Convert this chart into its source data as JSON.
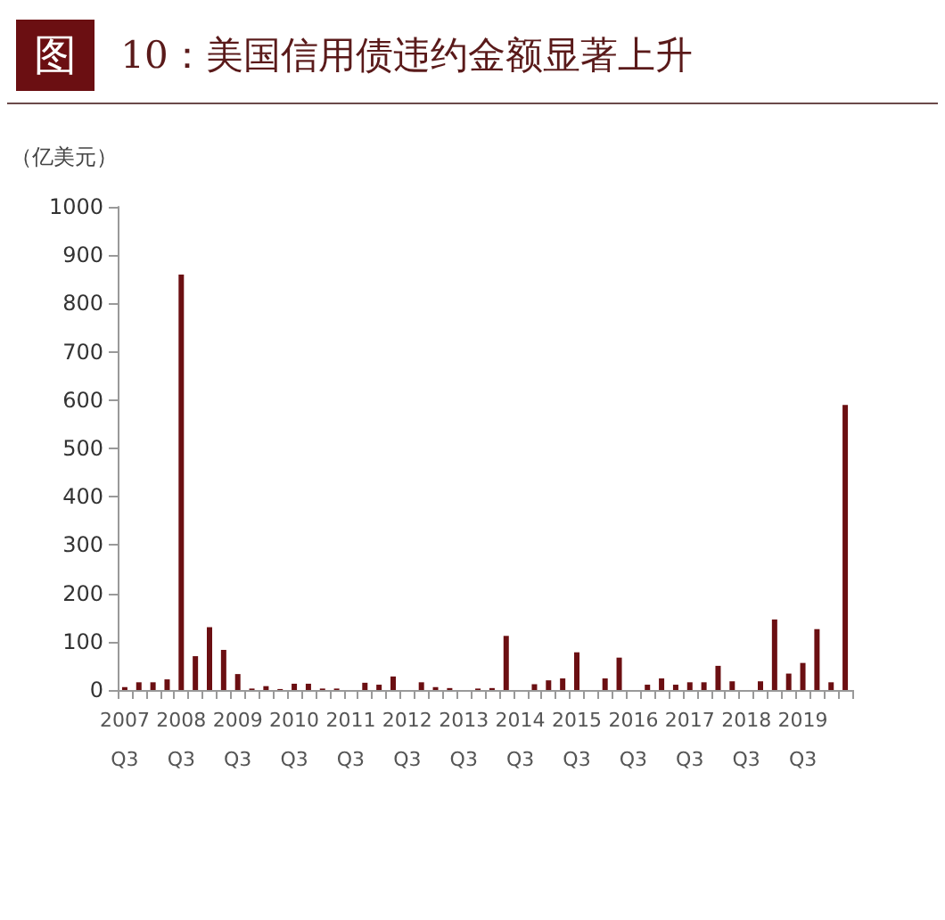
{
  "chart_data": {
    "type": "bar",
    "title": "图 10：美国信用债违约金额显著上升",
    "ylabel": "（亿美元）",
    "categories": [
      "2007\nQ3",
      null,
      null,
      null,
      "2008\nQ3",
      null,
      null,
      null,
      "2009\nQ3",
      null,
      null,
      null,
      "2010\nQ3",
      null,
      null,
      null,
      "2011\nQ3",
      null,
      null,
      null,
      "2012\nQ3",
      null,
      null,
      null,
      "2013\nQ3",
      null,
      null,
      null,
      "2014\nQ3",
      null,
      null,
      null,
      "2015\nQ3",
      null,
      null,
      null,
      "2016\nQ3",
      null,
      null,
      null,
      "2017\nQ3",
      null,
      null,
      null,
      "2018\nQ3",
      null,
      null,
      null,
      "2019\nQ3",
      null,
      null,
      null
    ],
    "values": [
      6,
      16,
      16,
      22,
      860,
      70,
      130,
      83,
      33,
      3,
      8,
      2,
      13,
      13,
      3,
      3,
      null,
      15,
      11,
      28,
      null,
      16,
      6,
      4,
      null,
      3,
      4,
      112,
      null,
      12,
      20,
      24,
      78,
      0,
      24,
      67,
      0,
      11,
      24,
      11,
      16,
      16,
      50,
      18,
      0,
      18,
      146,
      34,
      56,
      126,
      16,
      590
    ],
    "color": "#6b0f12",
    "ylim": [
      0,
      1000
    ],
    "yticks": [
      0,
      100,
      200,
      300,
      400,
      500,
      600,
      700,
      800,
      900,
      1000
    ],
    "grid": false
  }
}
